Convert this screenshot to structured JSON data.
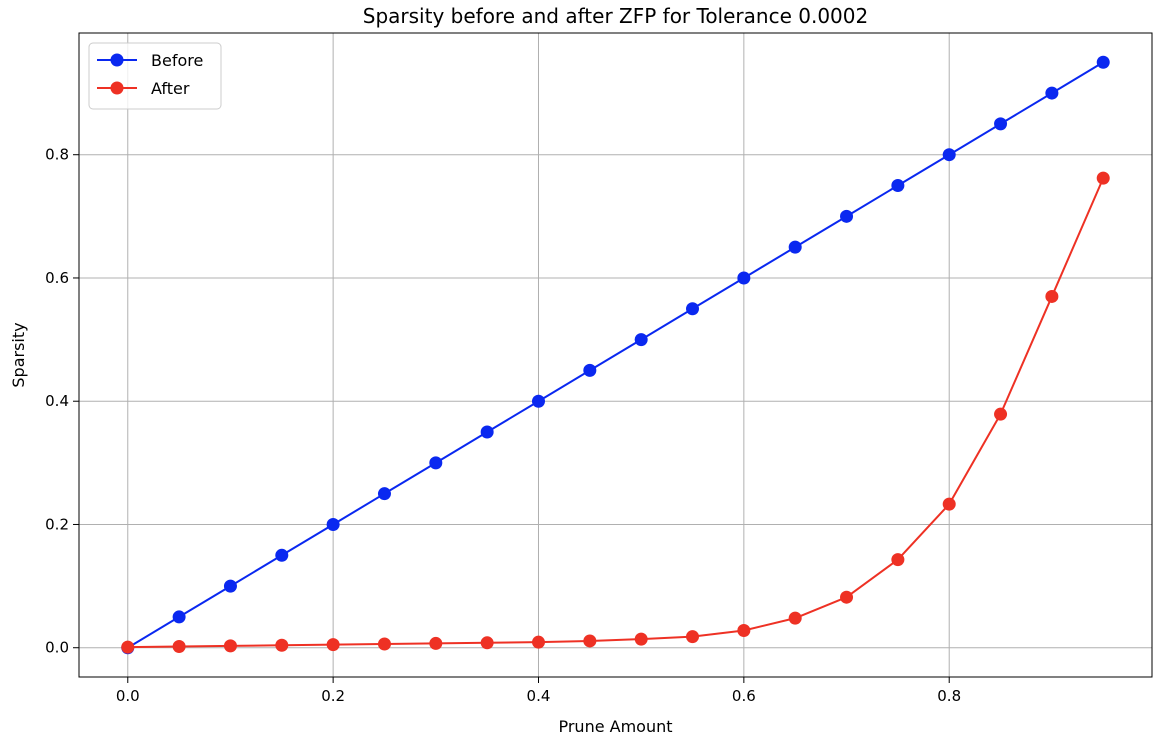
{
  "chart_data": {
    "type": "line",
    "title": "Sparsity before and after ZFP for Tolerance 0.0002",
    "xlabel": "Prune Amount",
    "ylabel": "Sparsity",
    "x": [
      0.0,
      0.05,
      0.1,
      0.15,
      0.2,
      0.25,
      0.3,
      0.35,
      0.4,
      0.45,
      0.5,
      0.55,
      0.6,
      0.65,
      0.7,
      0.75,
      0.8,
      0.85,
      0.9,
      0.95
    ],
    "series": [
      {
        "name": "Before",
        "color": "#0a28f0",
        "values": [
          0.0,
          0.05,
          0.1,
          0.15,
          0.2,
          0.25,
          0.3,
          0.35,
          0.4,
          0.45,
          0.5,
          0.55,
          0.6,
          0.65,
          0.7,
          0.75,
          0.8,
          0.85,
          0.9,
          0.95
        ]
      },
      {
        "name": "After",
        "color": "#ee3124",
        "values": [
          0.001,
          0.002,
          0.003,
          0.004,
          0.005,
          0.006,
          0.007,
          0.008,
          0.009,
          0.011,
          0.014,
          0.018,
          0.028,
          0.048,
          0.082,
          0.143,
          0.233,
          0.379,
          0.57,
          0.762
        ]
      }
    ],
    "xlim": [
      -0.0475,
      0.9975
    ],
    "ylim": [
      -0.0475,
      0.9975
    ],
    "xticks": [
      0.0,
      0.2,
      0.4,
      0.6,
      0.8
    ],
    "xtick_labels": [
      "0.0",
      "0.2",
      "0.4",
      "0.6",
      "0.8"
    ],
    "yticks": [
      0.0,
      0.2,
      0.4,
      0.6,
      0.8
    ],
    "ytick_labels": [
      "0.0",
      "0.2",
      "0.4",
      "0.6",
      "0.8"
    ],
    "grid": true,
    "legend_position": "top-left"
  }
}
